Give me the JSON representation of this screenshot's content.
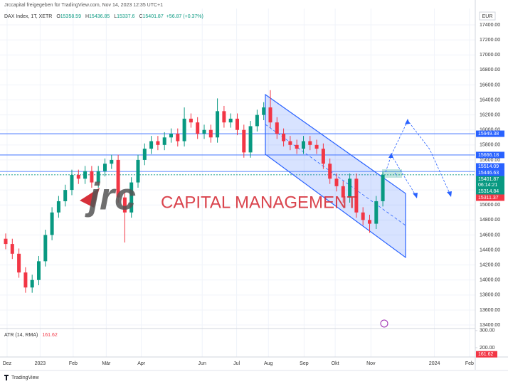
{
  "header": "Jrccapital freigegeben für TradingView.com, Nov 14, 2023 12:35 UTC+1",
  "footer": "TradingView",
  "watermark": {
    "logo": "jrc",
    "text": "CAPITAL MANAGEMENT"
  },
  "chart_data": [
    {
      "type": "candlestick",
      "symbol": "DAX Index, 1T, XETR",
      "ohlc": [
        {
          "prefix": "O",
          "value": 15358.59
        },
        {
          "prefix": "H",
          "value": 15436.85
        },
        {
          "prefix": "L",
          "value": 15337.6
        },
        {
          "prefix": "C",
          "value": 15401.87
        }
      ],
      "change": "+56.87 (+0.37%)",
      "currency": "EUR",
      "up_color": "#089981",
      "down_color": "#f23645",
      "x": [
        0,
        1,
        2,
        3,
        4,
        5,
        6,
        7,
        8,
        9,
        10,
        11,
        12,
        13,
        14,
        15,
        16,
        17,
        18,
        19,
        20,
        21,
        22,
        23,
        24,
        25,
        26,
        27,
        28,
        29,
        30,
        31,
        32,
        33,
        34,
        35,
        36,
        37,
        38,
        39,
        40,
        41,
        42,
        43,
        44,
        45,
        46,
        47,
        48,
        49,
        50,
        51,
        52,
        53,
        54,
        55,
        56,
        57
      ],
      "open": [
        14550,
        14480,
        14350,
        14100,
        13900,
        14000,
        14250,
        14600,
        14900,
        15050,
        15200,
        15400,
        15350,
        15450,
        15300,
        15450,
        15550,
        15600,
        15100,
        14900,
        15300,
        15600,
        15750,
        15850,
        15800,
        15900,
        15950,
        15850,
        16150,
        16100,
        15950,
        16000,
        15900,
        16250,
        16100,
        16150,
        16000,
        15700,
        16050,
        16200,
        16300,
        16100,
        15950,
        15850,
        15800,
        15750,
        15850,
        15800,
        15750,
        15550,
        15350,
        15250,
        15100,
        15350,
        14900,
        14800,
        14750,
        15050
      ],
      "high": [
        14620,
        14550,
        14420,
        14170,
        14070,
        14320,
        14670,
        14970,
        15120,
        15270,
        15470,
        15470,
        15520,
        15520,
        15520,
        15620,
        15670,
        15670,
        15170,
        15370,
        15670,
        15820,
        15920,
        15920,
        15970,
        16020,
        16020,
        16300,
        16220,
        16170,
        16070,
        16070,
        16420,
        16320,
        16220,
        16220,
        16070,
        16120,
        16270,
        16370,
        16530,
        16170,
        16020,
        15920,
        15870,
        15920,
        15920,
        15870,
        15820,
        15620,
        15420,
        15320,
        15420,
        15420,
        14970,
        14870,
        15120,
        15437
      ],
      "low": [
        14410,
        14280,
        14030,
        13830,
        13830,
        13930,
        14180,
        14530,
        14830,
        14980,
        15130,
        15280,
        15280,
        15230,
        15230,
        15380,
        15480,
        15030,
        14500,
        14830,
        15230,
        15530,
        15680,
        15730,
        15730,
        15830,
        15780,
        15780,
        16030,
        15880,
        15880,
        15830,
        15830,
        16030,
        16030,
        15930,
        15630,
        15630,
        15980,
        16130,
        16030,
        15880,
        15780,
        15730,
        15680,
        15680,
        15730,
        15680,
        15480,
        15280,
        15180,
        15030,
        15030,
        14830,
        14730,
        14630,
        14680,
        14980
      ],
      "close": [
        14480,
        14350,
        14100,
        13900,
        14000,
        14250,
        14600,
        14900,
        15050,
        15200,
        15400,
        15350,
        15450,
        15300,
        15450,
        15550,
        15600,
        15100,
        14900,
        15300,
        15600,
        15750,
        15850,
        15800,
        15900,
        15950,
        15850,
        16150,
        16100,
        15950,
        16000,
        15900,
        16250,
        16100,
        16150,
        16000,
        15700,
        16050,
        16200,
        16300,
        16100,
        15950,
        15850,
        15800,
        15750,
        15850,
        15800,
        15750,
        15550,
        15350,
        15250,
        15100,
        15350,
        14900,
        14800,
        14750,
        15050,
        15402
      ],
      "xlim": [
        -0.86,
        70.97
      ],
      "xticks": [
        {
          "value": 0.21,
          "label": "Dez"
        },
        {
          "value": 5.2,
          "label": "2023"
        },
        {
          "value": 10.2,
          "label": "Feb"
        },
        {
          "value": 15.2,
          "label": "Mär"
        },
        {
          "value": 20.5,
          "label": "Apr"
        },
        {
          "value": 29.7,
          "label": "Jun"
        },
        {
          "value": 34.9,
          "label": "Jul"
        },
        {
          "value": 39.7,
          "label": "Aug"
        },
        {
          "value": 45.1,
          "label": "Sep"
        },
        {
          "value": 49.8,
          "label": "Okt"
        },
        {
          "value": 55.2,
          "label": "Nov"
        },
        {
          "value": 64.8,
          "label": "2024"
        },
        {
          "value": 70.1,
          "label": "Feb"
        }
      ],
      "ylim": [
        13353,
        17618
      ],
      "yticks": [
        {
          "value": 13400,
          "label": "13400.00"
        },
        {
          "value": 13600,
          "label": "13600.00"
        },
        {
          "value": 13800,
          "label": "13800.00"
        },
        {
          "value": 14000,
          "label": "14000.00"
        },
        {
          "value": 14200,
          "label": "14200.00"
        },
        {
          "value": 14400,
          "label": "14400.00"
        },
        {
          "value": 14600,
          "label": "14600.00"
        },
        {
          "value": 14800,
          "label": "14800.00"
        },
        {
          "value": 15000,
          "label": "15000.00"
        },
        {
          "value": 15200,
          "label": "15200.00"
        },
        {
          "value": 15400,
          "label": "15400.00"
        },
        {
          "value": 15600,
          "label": "15600.00"
        },
        {
          "value": 15800,
          "label": "15800.00"
        },
        {
          "value": 16000,
          "label": "16000.00"
        },
        {
          "value": 16200,
          "label": "16200.00"
        },
        {
          "value": 16400,
          "label": "16400.00"
        },
        {
          "value": 16600,
          "label": "16600.00"
        },
        {
          "value": 16800,
          "label": "16800.00"
        },
        {
          "value": 17000,
          "label": "17000.00"
        },
        {
          "value": 17200,
          "label": "17200.00"
        },
        {
          "value": 17400,
          "label": "17400.00"
        }
      ],
      "grid": true,
      "price_lines": [
        {
          "value": 15949.38,
          "color": "#2962ff",
          "line": true
        },
        {
          "value": 15666.18,
          "color": "#2962ff",
          "line": true
        },
        {
          "value": 15514.09,
          "color": "#2962ff",
          "line": false
        },
        {
          "value": 15446.63,
          "color": "#2962ff",
          "line": true
        },
        {
          "value": 15401.87,
          "color": "#089981",
          "line": true,
          "countdown": "06:14:21"
        },
        {
          "value": 15314.84,
          "color": "#089981",
          "line": false
        },
        {
          "value": 15311.37,
          "color": "#f23645",
          "line": false
        }
      ]
    },
    {
      "type": "indicator",
      "title": "ATR (14, RMA)",
      "last_value": 161.62,
      "color": "#f23645",
      "ylim": [
        150,
        312
      ],
      "yticks": [
        {
          "value": 200,
          "label": "200.00"
        },
        {
          "value": 300,
          "label": "300.00"
        }
      ]
    }
  ]
}
